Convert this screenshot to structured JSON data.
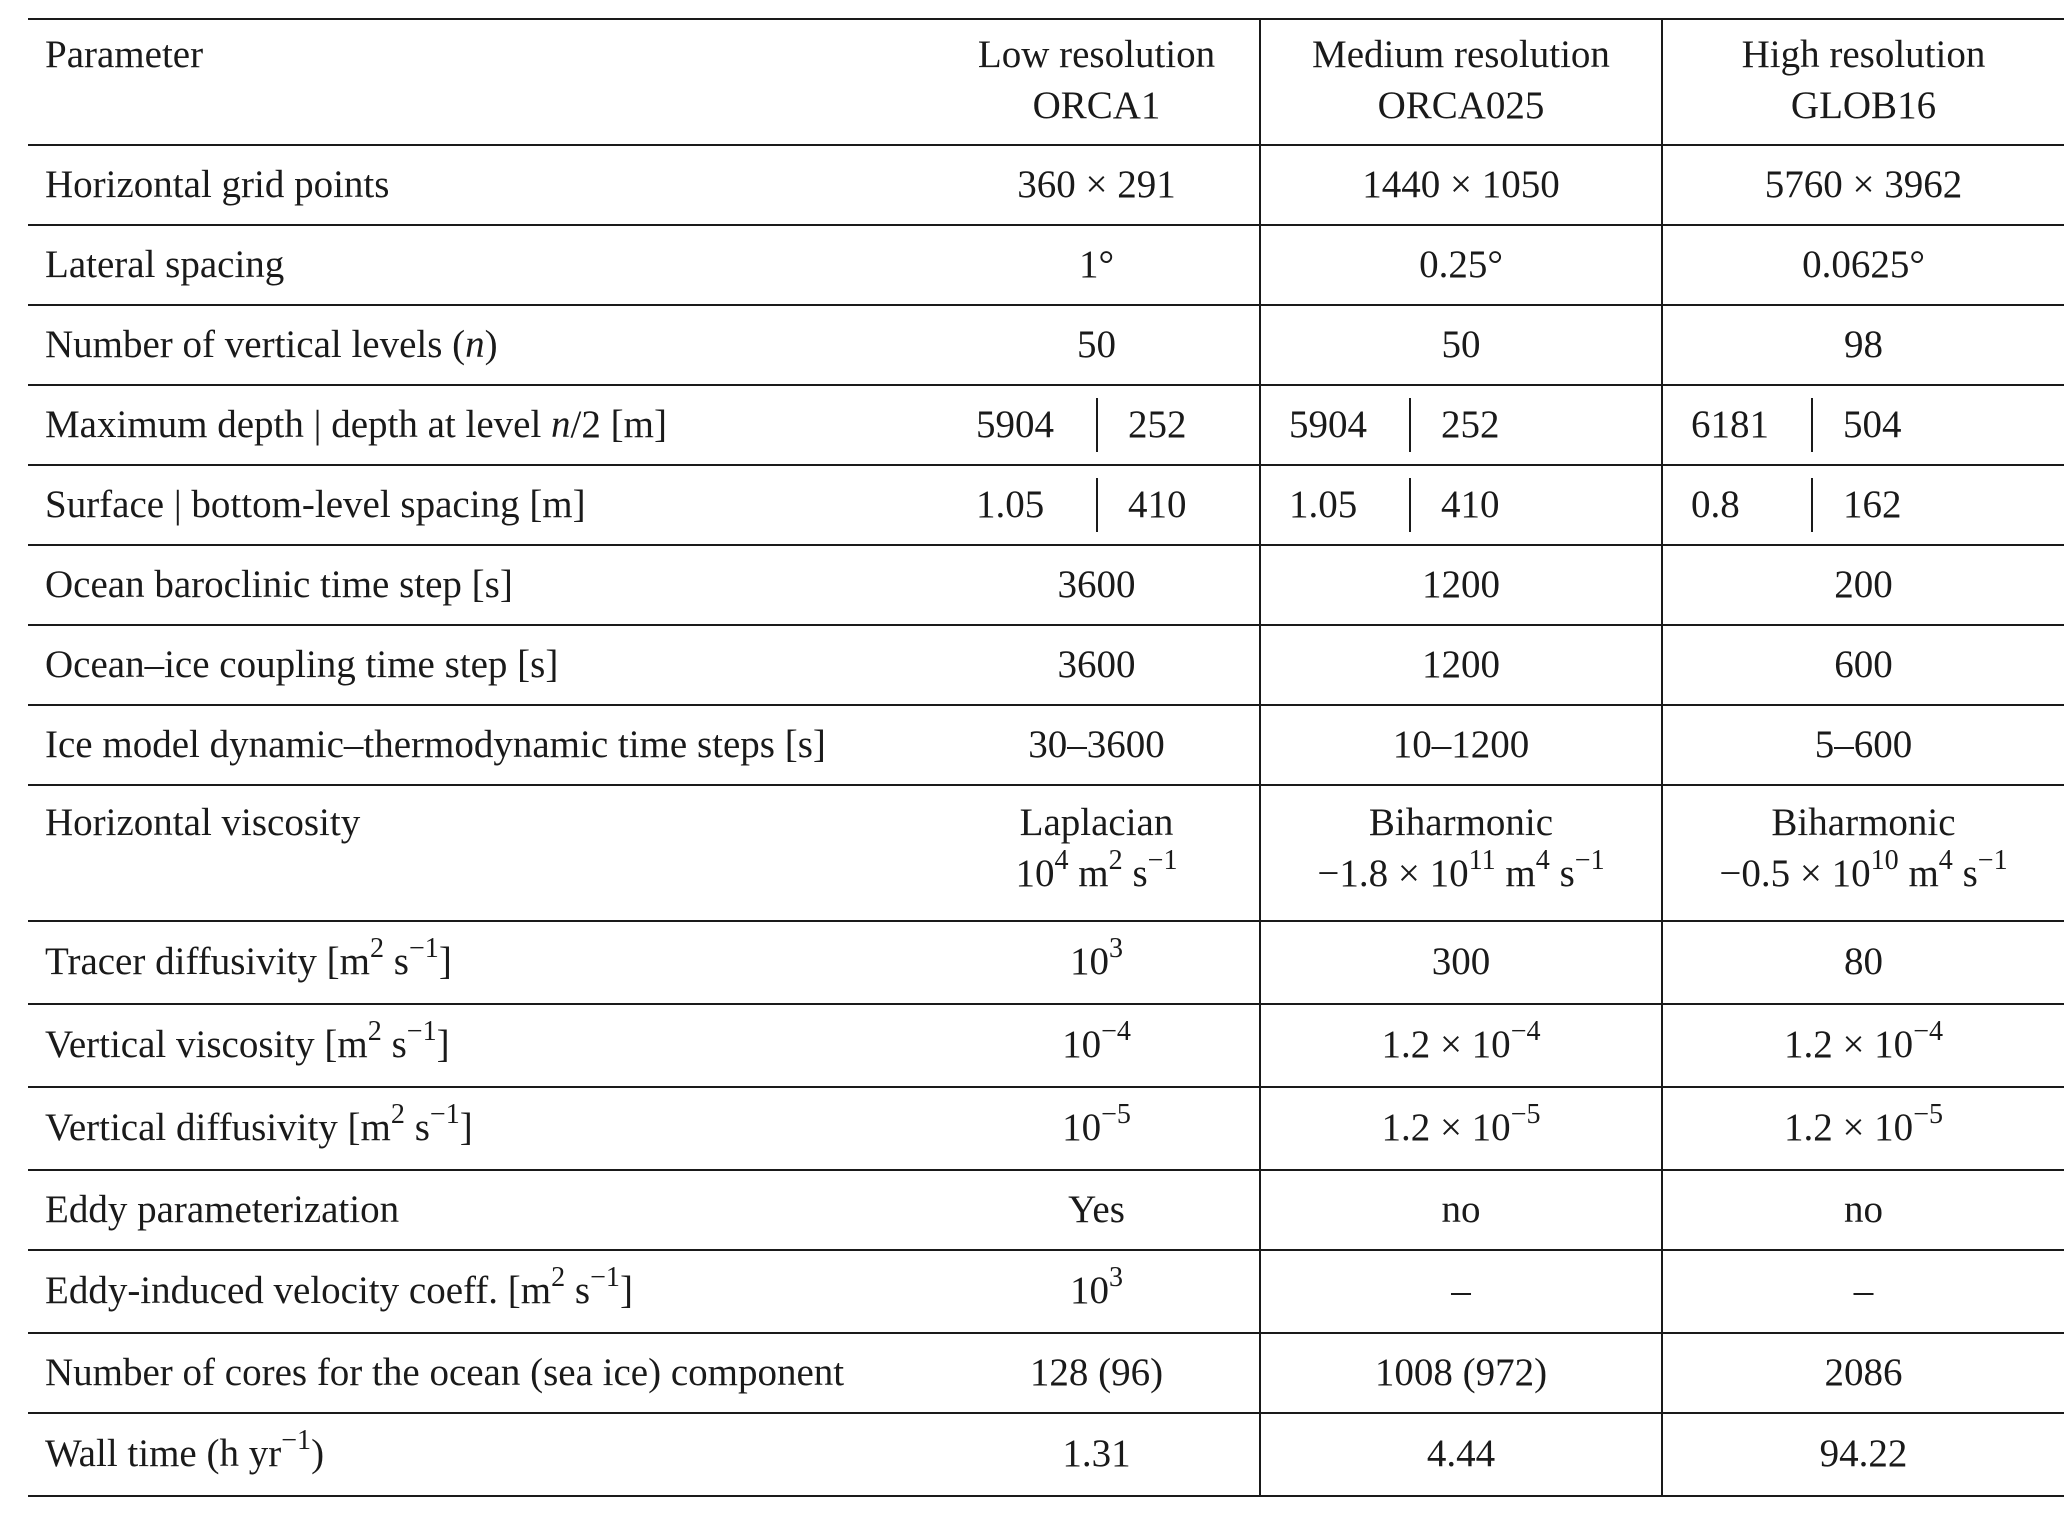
{
  "header": {
    "param": "Parameter",
    "low": [
      "Low resolution",
      "ORCA1"
    ],
    "medium": [
      "Medium resolution",
      "ORCA025"
    ],
    "high": [
      "High resolution",
      "GLOB16"
    ]
  },
  "rows": [
    {
      "param": "Horizontal grid points",
      "low": "360 × 291",
      "medium": "1440 × 1050",
      "high": "5760 × 3962"
    },
    {
      "param": "Lateral spacing",
      "low": "1°",
      "medium": "0.25°",
      "high": "0.0625°"
    },
    {
      "param_pre": "Number of vertical levels (",
      "param_var": "n",
      "param_post": ")",
      "low": "50",
      "medium": "50",
      "high": "98"
    },
    {
      "param_pre": "Maximum depth | depth at level ",
      "param_var": "n",
      "param_post": "/2 [m]",
      "low": [
        "5904",
        "252"
      ],
      "medium": [
        "5904",
        "252"
      ],
      "high": [
        "6181",
        "504"
      ]
    },
    {
      "param": "Surface | bottom-level spacing [m]",
      "low": [
        "1.05",
        "410"
      ],
      "medium": [
        "1.05",
        "410"
      ],
      "high": [
        "0.8",
        "162"
      ]
    },
    {
      "param": "Ocean baroclinic time step [s]",
      "low": "3600",
      "medium": "1200",
      "high": "200"
    },
    {
      "param": "Ocean–ice coupling time step [s]",
      "low": "3600",
      "medium": "1200",
      "high": "600"
    },
    {
      "param": "Ice model dynamic–thermodynamic time steps [s]",
      "low": "30–3600",
      "medium": "10–1200",
      "high": "5–600"
    },
    {
      "param": "Horizontal viscosity",
      "low": {
        "line1": "Laplacian",
        "base": "10",
        "exp": "4",
        "unit_a": " m",
        "unit_a_exp": "2",
        "unit_b": " s",
        "unit_b_exp": "−1"
      },
      "medium": {
        "line1": "Biharmonic",
        "base": "−1.8 × 10",
        "exp": "11",
        "unit_a": " m",
        "unit_a_exp": "4",
        "unit_b": " s",
        "unit_b_exp": "−1"
      },
      "high": {
        "line1": "Biharmonic",
        "base": "−0.5 × 10",
        "exp": "10",
        "unit_a": " m",
        "unit_a_exp": "4",
        "unit_b": " s",
        "unit_b_exp": "−1"
      }
    },
    {
      "param_pre": "Tracer diffusivity [m",
      "param_exp1": "2",
      "param_mid": " s",
      "param_exp2": "−1",
      "param_post": "]",
      "low": {
        "base": "10",
        "exp": "3"
      },
      "medium": "300",
      "high": "80"
    },
    {
      "param_pre": "Vertical viscosity [m",
      "param_exp1": "2",
      "param_mid": " s",
      "param_exp2": "−1",
      "param_post": "]",
      "low": {
        "base": "10",
        "exp": "−4"
      },
      "medium": {
        "base": "1.2 × 10",
        "exp": "−4"
      },
      "high": {
        "base": "1.2 × 10",
        "exp": "−4"
      }
    },
    {
      "param_pre": "Vertical diffusivity [m",
      "param_exp1": "2",
      "param_mid": " s",
      "param_exp2": "−1",
      "param_post": "]",
      "low": {
        "base": "10",
        "exp": "−5"
      },
      "medium": {
        "base": "1.2 × 10",
        "exp": "−5"
      },
      "high": {
        "base": "1.2 × 10",
        "exp": "−5"
      }
    },
    {
      "param": "Eddy parameterization",
      "low": "Yes",
      "medium": "no",
      "high": "no"
    },
    {
      "param_pre": "Eddy-induced velocity coeff. [m",
      "param_exp1": "2",
      "param_mid": " s",
      "param_exp2": "−1",
      "param_post": "]",
      "low": {
        "base": "10",
        "exp": "3"
      },
      "medium": "–",
      "high": "–"
    },
    {
      "param": "Number of cores for the ocean (sea ice) component",
      "low": "128 (96)",
      "medium": "1008 (972)",
      "high": "2086"
    },
    {
      "param_pre": "Wall time (h yr",
      "param_exp1": "−1",
      "param_mid": ")",
      "low": "1.31",
      "medium": "4.44",
      "high": "94.22"
    }
  ]
}
